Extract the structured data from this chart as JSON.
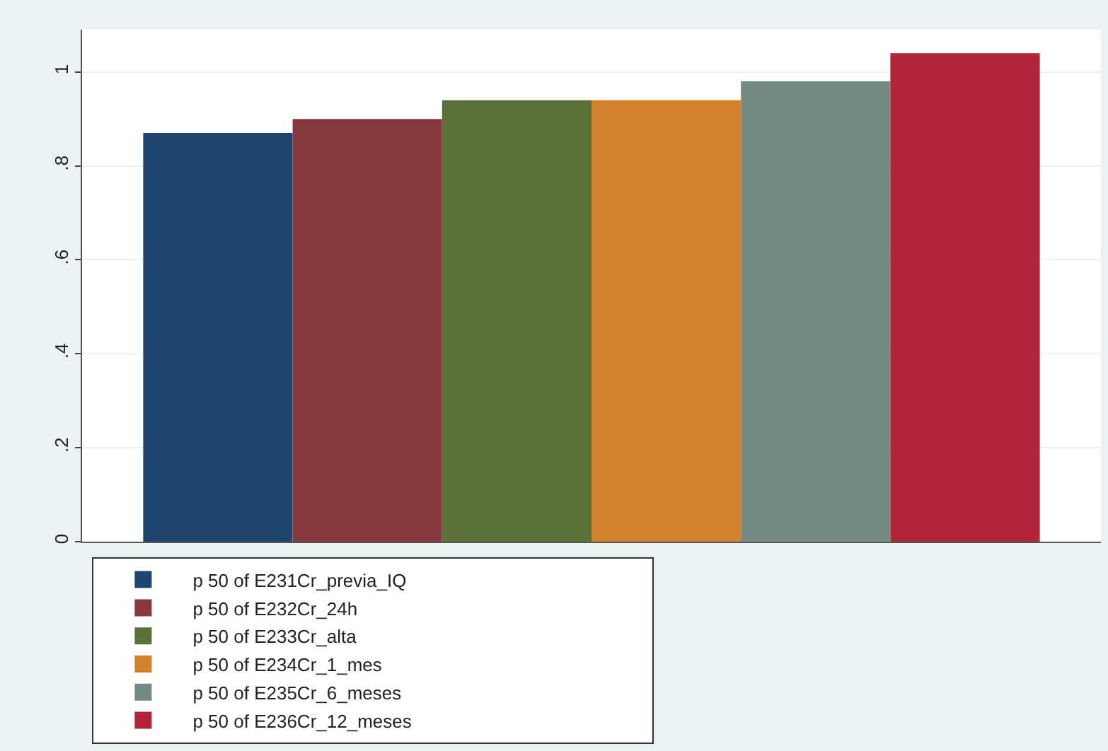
{
  "chart_data": {
    "type": "bar",
    "categories": [
      null
    ],
    "series": [
      {
        "name": "p 50 of E231Cr_previa_IQ",
        "color": "#1f456e",
        "values": [
          0.87
        ]
      },
      {
        "name": "p 50 of E232Cr_24h",
        "color": "#88393d",
        "values": [
          0.9
        ]
      },
      {
        "name": "p 50 of E233Cr_alta",
        "color": "#5a7237",
        "values": [
          0.94
        ]
      },
      {
        "name": "p 50 of E234Cr_1_mes",
        "color": "#d5822f",
        "values": [
          0.94
        ]
      },
      {
        "name": "p 50 of E235Cr_6_meses",
        "color": "#728a82",
        "values": [
          0.98
        ]
      },
      {
        "name": "p 50 of E236Cr_12_meses",
        "color": "#b22437",
        "values": [
          1.04
        ]
      }
    ],
    "ylim": [
      0,
      1.09
    ],
    "yticks": [
      0,
      {
        "value": 0.2,
        "label": ".2"
      },
      {
        "value": 0.4,
        "label": ".4"
      },
      {
        "value": 0.6,
        "label": ".6"
      },
      {
        "value": 0.8,
        "label": ".8"
      },
      1
    ],
    "grid": "y",
    "legend": "bottom"
  }
}
